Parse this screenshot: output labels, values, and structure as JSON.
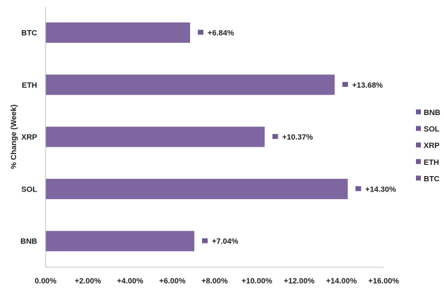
{
  "chart_data": {
    "type": "bar",
    "orientation": "horizontal",
    "title": "",
    "xlabel": "",
    "ylabel": "% Change (Week)",
    "categories": [
      "BTC",
      "ETH",
      "XRP",
      "SOL",
      "BNB"
    ],
    "values": [
      6.84,
      13.68,
      10.37,
      14.3,
      7.04
    ],
    "data_labels": [
      "+6.84%",
      "+13.68%",
      "+10.37%",
      "+14.30%",
      "+7.04%"
    ],
    "xlim": [
      0,
      16
    ],
    "x_ticks": [
      0,
      2,
      4,
      6,
      8,
      10,
      12,
      14,
      16
    ],
    "x_tick_labels": [
      "0.00%",
      "+2.00%",
      "+4.00%",
      "+6.00%",
      "+8.00%",
      "+10.00%",
      "+12.00%",
      "+14.00%",
      "+16.00%"
    ],
    "legend": {
      "placement": "right",
      "entries": [
        "BNB",
        "SOL",
        "XRP",
        "ETH",
        "BTC"
      ]
    },
    "grid": false,
    "colors": {
      "bar": "#7e66a0",
      "marker": "#6f5a8f",
      "axis": "#bdbdbd",
      "text": "#1f1f1f"
    }
  }
}
